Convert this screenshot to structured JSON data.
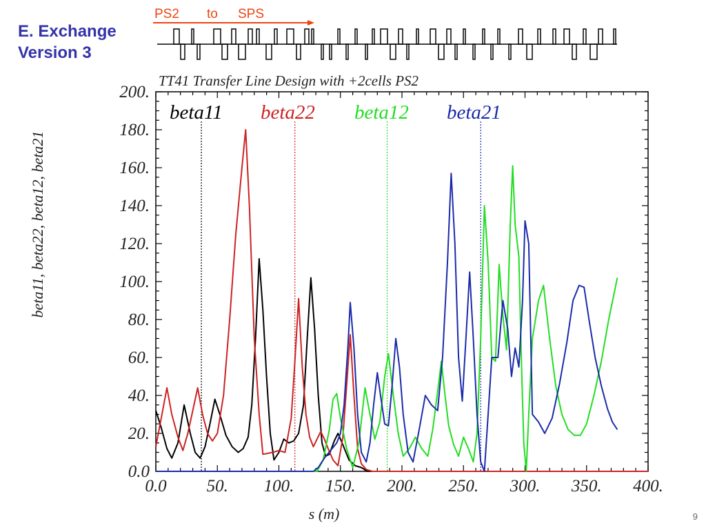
{
  "slide": {
    "title_line1": "E. Exchange",
    "title_line2": "Version 3",
    "page_number": "9"
  },
  "lattice": {
    "ps2_label": "PS2",
    "to_label": "to",
    "sps_label": "SPS",
    "arrow_color": "#ee4411"
  },
  "chart_data": {
    "type": "line",
    "title": "TT41 Transfer Line Design with +2cells PS2",
    "xlabel": "s (m)",
    "ylabel": "beta11, beta22, beta12, beta21",
    "xlim": [
      0,
      400
    ],
    "ylim": [
      0,
      200
    ],
    "x_ticks": [
      "0.0",
      "50.",
      "100.",
      "150.",
      "200.",
      "250.",
      "300.",
      "350.",
      "400."
    ],
    "y_ticks": [
      "0.0",
      "20.",
      "40.",
      "60.",
      "80.",
      "100.",
      "120.",
      "140.",
      "160.",
      "180.",
      "200."
    ],
    "legend_placement": "top",
    "series": [
      {
        "name": "beta11",
        "color": "#000000",
        "marker_s": 37,
        "points": [
          [
            0,
            32
          ],
          [
            4,
            24
          ],
          [
            9,
            12
          ],
          [
            13,
            7
          ],
          [
            18,
            15
          ],
          [
            23,
            35
          ],
          [
            28,
            20
          ],
          [
            32,
            10
          ],
          [
            36,
            7
          ],
          [
            40,
            13
          ],
          [
            44,
            25
          ],
          [
            48,
            38
          ],
          [
            52,
            30
          ],
          [
            57,
            19
          ],
          [
            62,
            13
          ],
          [
            67,
            10
          ],
          [
            71,
            12
          ],
          [
            75,
            18
          ],
          [
            78,
            35
          ],
          [
            81,
            70
          ],
          [
            84,
            112
          ],
          [
            87,
            85
          ],
          [
            90,
            50
          ],
          [
            93,
            20
          ],
          [
            96,
            6
          ],
          [
            100,
            10
          ],
          [
            104,
            17
          ],
          [
            108,
            15
          ],
          [
            112,
            16
          ],
          [
            116,
            20
          ],
          [
            120,
            35
          ],
          [
            123,
            70
          ],
          [
            126,
            102
          ],
          [
            129,
            75
          ],
          [
            132,
            40
          ],
          [
            135,
            15
          ],
          [
            138,
            8
          ],
          [
            141,
            9
          ],
          [
            145,
            16
          ],
          [
            148,
            20
          ],
          [
            152,
            14
          ],
          [
            157,
            6
          ],
          [
            162,
            3
          ],
          [
            167,
            2
          ],
          [
            172,
            0
          ],
          [
            400,
            0
          ]
        ]
      },
      {
        "name": "beta22",
        "color": "#cc2222",
        "marker_s": 113,
        "points": [
          [
            0,
            13
          ],
          [
            5,
            30
          ],
          [
            9,
            44
          ],
          [
            13,
            30
          ],
          [
            18,
            18
          ],
          [
            22,
            11
          ],
          [
            26,
            20
          ],
          [
            30,
            32
          ],
          [
            34,
            44
          ],
          [
            38,
            30
          ],
          [
            42,
            20
          ],
          [
            46,
            16
          ],
          [
            50,
            20
          ],
          [
            55,
            40
          ],
          [
            60,
            80
          ],
          [
            65,
            125
          ],
          [
            70,
            160
          ],
          [
            73,
            180
          ],
          [
            76,
            140
          ],
          [
            80,
            70
          ],
          [
            84,
            30
          ],
          [
            87,
            9
          ],
          [
            95,
            10
          ],
          [
            100,
            11
          ],
          [
            105,
            10
          ],
          [
            110,
            28
          ],
          [
            113,
            58
          ],
          [
            116,
            91
          ],
          [
            119,
            55
          ],
          [
            122,
            30
          ],
          [
            125,
            18
          ],
          [
            128,
            13
          ],
          [
            131,
            17
          ],
          [
            134,
            21
          ],
          [
            137,
            17
          ],
          [
            140,
            12
          ],
          [
            144,
            6
          ],
          [
            148,
            3
          ],
          [
            152,
            18
          ],
          [
            155,
            45
          ],
          [
            158,
            72
          ],
          [
            161,
            40
          ],
          [
            164,
            12
          ],
          [
            167,
            4
          ],
          [
            171,
            1
          ],
          [
            176,
            0
          ],
          [
            400,
            0
          ]
        ]
      },
      {
        "name": "beta12",
        "color": "#22dd22",
        "marker_s": 188,
        "points": [
          [
            0,
            0
          ],
          [
            131,
            0
          ],
          [
            136,
            6
          ],
          [
            141,
            22
          ],
          [
            144,
            38
          ],
          [
            147,
            41
          ],
          [
            150,
            28
          ],
          [
            155,
            12
          ],
          [
            160,
            2
          ],
          [
            165,
            15
          ],
          [
            170,
            44
          ],
          [
            174,
            30
          ],
          [
            178,
            17
          ],
          [
            182,
            26
          ],
          [
            186,
            50
          ],
          [
            189,
            62
          ],
          [
            193,
            40
          ],
          [
            197,
            20
          ],
          [
            201,
            8
          ],
          [
            206,
            12
          ],
          [
            211,
            18
          ],
          [
            216,
            12
          ],
          [
            221,
            8
          ],
          [
            225,
            22
          ],
          [
            229,
            42
          ],
          [
            232,
            58
          ],
          [
            235,
            40
          ],
          [
            238,
            24
          ],
          [
            242,
            14
          ],
          [
            246,
            8
          ],
          [
            250,
            18
          ],
          [
            254,
            12
          ],
          [
            258,
            5
          ],
          [
            261,
            20
          ],
          [
            264,
            70
          ],
          [
            267,
            140
          ],
          [
            270,
            110
          ],
          [
            273,
            60
          ],
          [
            276,
            58
          ],
          [
            279,
            109
          ],
          [
            282,
            82
          ],
          [
            285,
            64
          ],
          [
            288,
            130
          ],
          [
            290,
            161
          ],
          [
            292,
            130
          ],
          [
            295,
            113
          ],
          [
            297,
            60
          ],
          [
            299,
            15
          ],
          [
            301,
            0
          ],
          [
            303,
            30
          ],
          [
            306,
            70
          ],
          [
            311,
            90
          ],
          [
            315,
            98
          ],
          [
            320,
            70
          ],
          [
            325,
            45
          ],
          [
            330,
            30
          ],
          [
            335,
            22
          ],
          [
            340,
            19
          ],
          [
            345,
            19
          ],
          [
            350,
            25
          ],
          [
            356,
            40
          ],
          [
            362,
            58
          ],
          [
            368,
            80
          ],
          [
            375,
            102
          ]
        ]
      },
      {
        "name": "beta21",
        "color": "#1a2aaa",
        "marker_s": 264,
        "points": [
          [
            0,
            0
          ],
          [
            128,
            0
          ],
          [
            132,
            2
          ],
          [
            137,
            7
          ],
          [
            142,
            11
          ],
          [
            147,
            15
          ],
          [
            150,
            20
          ],
          [
            153,
            35
          ],
          [
            156,
            65
          ],
          [
            158,
            89
          ],
          [
            161,
            65
          ],
          [
            164,
            30
          ],
          [
            167,
            10
          ],
          [
            171,
            5
          ],
          [
            174,
            15
          ],
          [
            177,
            35
          ],
          [
            180,
            52
          ],
          [
            183,
            38
          ],
          [
            186,
            25
          ],
          [
            189,
            24
          ],
          [
            192,
            45
          ],
          [
            195,
            70
          ],
          [
            198,
            55
          ],
          [
            201,
            30
          ],
          [
            205,
            10
          ],
          [
            209,
            5
          ],
          [
            214,
            22
          ],
          [
            219,
            40
          ],
          [
            224,
            35
          ],
          [
            229,
            32
          ],
          [
            233,
            60
          ],
          [
            237,
            110
          ],
          [
            240,
            157
          ],
          [
            243,
            120
          ],
          [
            246,
            60
          ],
          [
            249,
            37
          ],
          [
            252,
            70
          ],
          [
            255,
            105
          ],
          [
            258,
            70
          ],
          [
            261,
            30
          ],
          [
            264,
            5
          ],
          [
            267,
            0
          ],
          [
            270,
            30
          ],
          [
            273,
            60
          ],
          [
            278,
            60
          ],
          [
            282,
            90
          ],
          [
            286,
            75
          ],
          [
            289,
            50
          ],
          [
            292,
            65
          ],
          [
            295,
            55
          ],
          [
            298,
            90
          ],
          [
            300,
            132
          ],
          [
            303,
            120
          ],
          [
            306,
            30
          ],
          [
            311,
            26
          ],
          [
            316,
            20
          ],
          [
            322,
            28
          ],
          [
            328,
            46
          ],
          [
            334,
            68
          ],
          [
            339,
            90
          ],
          [
            344,
            98
          ],
          [
            348,
            97
          ],
          [
            352,
            80
          ],
          [
            357,
            60
          ],
          [
            362,
            45
          ],
          [
            367,
            33
          ],
          [
            371,
            26
          ],
          [
            375,
            22
          ]
        ]
      }
    ]
  }
}
